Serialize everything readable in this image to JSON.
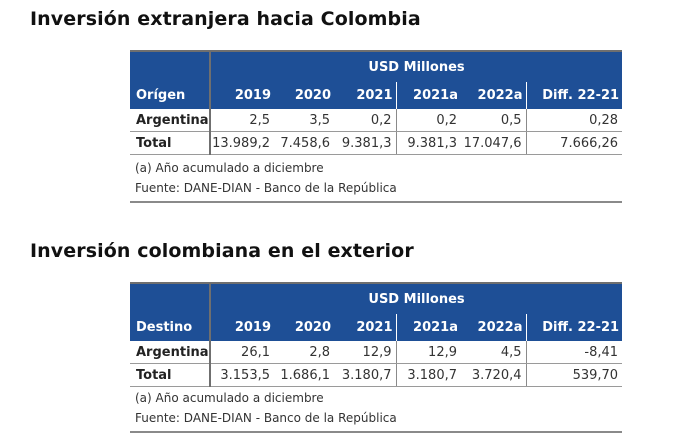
{
  "tables": [
    {
      "title": "Inversión extranjera hacia Colombia",
      "units": "USD Millones",
      "first_col_header": "Orígen",
      "columns": [
        "2019",
        "2020",
        "2021",
        "2021a",
        "2022a",
        "Diff. 22-21"
      ],
      "rows": [
        {
          "label": "Argentina",
          "values": [
            "2,5",
            "3,5",
            "0,2",
            "0,2",
            "0,5",
            "0,28"
          ]
        },
        {
          "label": "Total",
          "values": [
            "13.989,2",
            "7.458,6",
            "9.381,3",
            "9.381,3",
            "17.047,6",
            "7.666,26"
          ]
        }
      ],
      "note": "(a) Año acumulado a diciembre",
      "source": "Fuente: DANE-DIAN - Banco de la República"
    },
    {
      "title": "Inversión colombiana en el exterior",
      "units": "USD Millones",
      "first_col_header": "Destino",
      "columns": [
        "2019",
        "2020",
        "2021",
        "2021a",
        "2022a",
        "Diff. 22-21"
      ],
      "rows": [
        {
          "label": "Argentina",
          "values": [
            "26,1",
            "2,8",
            "12,9",
            "12,9",
            "4,5",
            "-8,41"
          ]
        },
        {
          "label": "Total",
          "values": [
            "3.153,5",
            "1.686,1",
            "3.180,7",
            "3.180,7",
            "3.720,4",
            "539,70"
          ]
        }
      ],
      "note": "(a) Año acumulado a diciembre",
      "source": "Fuente: DANE-DIAN - Banco de la República"
    }
  ],
  "colors": {
    "header_bg": "#1e4f96",
    "header_text": "#ffffff"
  }
}
